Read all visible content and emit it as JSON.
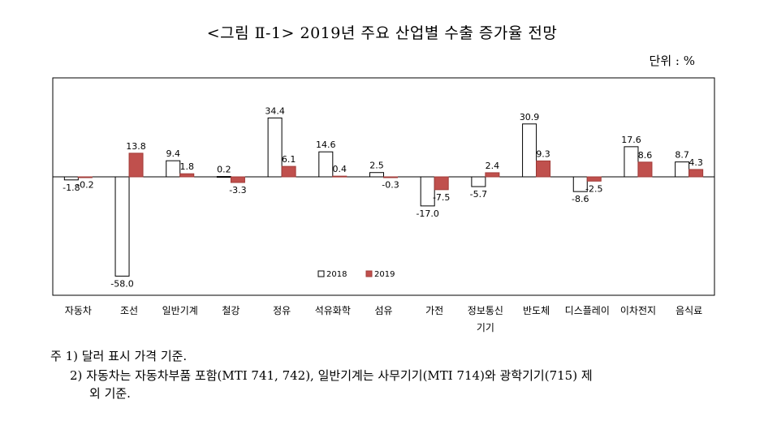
{
  "title": "<그림 Ⅱ-1> 2019년 주요 산업별 수출 증가율 전망",
  "unit_label": "단위 : %",
  "notes": {
    "note1": "주 1) 달러 표시 가격 기준.",
    "note2_line1": "2) 자동차는 자동차부품 포함(MTI 741, 742), 일반기계는 사무기기(MTI 714)와 광학기기(715) 제",
    "note2_line2": "외 기준."
  },
  "chart_data": {
    "type": "bar",
    "categories": [
      "자동차",
      "조선",
      "일반기계",
      "철강",
      "정유",
      "석유화학",
      "섬유",
      "가전",
      "정보통신\n기기",
      "반도체",
      "디스플레이",
      "이차전지",
      "음식료"
    ],
    "category_lines": [
      [
        "자동차"
      ],
      [
        "조선"
      ],
      [
        "일반기계"
      ],
      [
        "철강"
      ],
      [
        "정유"
      ],
      [
        "석유화학"
      ],
      [
        "섬유"
      ],
      [
        "가전"
      ],
      [
        "정보통신",
        "기기"
      ],
      [
        "반도체"
      ],
      [
        "디스플레이"
      ],
      [
        "이차전지"
      ],
      [
        "음식료"
      ]
    ],
    "series": [
      {
        "name": "2018",
        "color": "#ffffff",
        "stroke": "#000000",
        "values": [
          -1.8,
          -58.0,
          9.4,
          0.2,
          34.4,
          14.6,
          2.5,
          -17.0,
          -5.7,
          30.9,
          -8.6,
          17.6,
          8.7
        ],
        "labels": [
          "-1.8",
          "-58.0",
          "9.4",
          "0.2",
          "34.4",
          "14.6",
          "2.5",
          "-17.0",
          "-5.7",
          "30.9",
          "-8.6",
          "17.6",
          "8.7"
        ]
      },
      {
        "name": "2019",
        "color": "#c0504d",
        "stroke": "#a23c39",
        "values": [
          -0.2,
          13.8,
          1.8,
          -3.3,
          6.1,
          0.4,
          -0.3,
          -7.5,
          2.4,
          9.3,
          -2.5,
          8.6,
          4.3
        ],
        "labels": [
          "-0.2",
          "13.8",
          "1.8",
          "-3.3",
          "6.1",
          "0.4",
          "-0.3",
          "-7.5",
          "2.4",
          "9.3",
          "-2.5",
          "8.6",
          "4.3"
        ]
      }
    ],
    "legend": {
      "position": "bottom-center",
      "labels": [
        "2018",
        "2019"
      ]
    },
    "grid": false,
    "ylim": [
      -62,
      45
    ]
  }
}
